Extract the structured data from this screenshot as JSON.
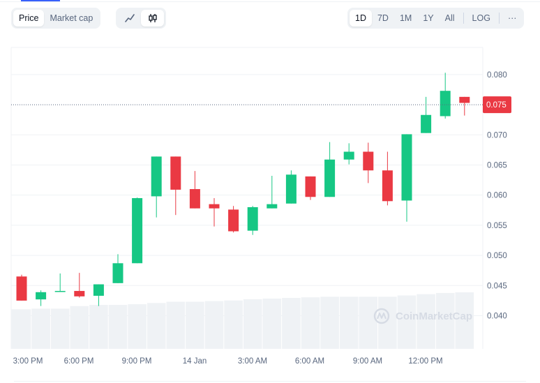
{
  "toolbar": {
    "metric_tabs": [
      {
        "label": "Price",
        "active": true
      },
      {
        "label": "Market cap",
        "active": false
      }
    ],
    "view_tabs": [
      {
        "icon": "line-chart-icon",
        "active": false
      },
      {
        "icon": "candlestick-icon",
        "active": true
      }
    ],
    "range_tabs": [
      {
        "label": "1D",
        "active": true
      },
      {
        "label": "7D",
        "active": false
      },
      {
        "label": "1M",
        "active": false
      },
      {
        "label": "1Y",
        "active": false
      },
      {
        "label": "All",
        "active": false
      }
    ],
    "log_label": "LOG",
    "more_label": "···"
  },
  "watermark": "CoinMarketCap",
  "colors": {
    "up": "#16c784",
    "down": "#ea3943",
    "grid": "#eff2f5",
    "volume": "#eff2f5",
    "text": "#58667e"
  },
  "chart_data": {
    "type": "candlestick",
    "current_price": 0.075,
    "current_price_label": "0.075",
    "ylim": [
      0.0345,
      0.0845
    ],
    "y_ticks": [
      "0.080",
      "0.075",
      "0.070",
      "0.065",
      "0.060",
      "0.055",
      "0.050",
      "0.045",
      "0.040"
    ],
    "x_ticks": [
      "3:00 PM",
      "6:00 PM",
      "9:00 PM",
      "14 Jan",
      "3:00 AM",
      "6:00 AM",
      "9:00 AM",
      "12:00 PM"
    ],
    "candles": [
      {
        "o": 0.0465,
        "h": 0.0468,
        "l": 0.0425,
        "c": 0.0425
      },
      {
        "o": 0.0427,
        "h": 0.0442,
        "l": 0.0416,
        "c": 0.0439
      },
      {
        "o": 0.044,
        "h": 0.047,
        "l": 0.044,
        "c": 0.0441
      },
      {
        "o": 0.0441,
        "h": 0.0471,
        "l": 0.043,
        "c": 0.0432
      },
      {
        "o": 0.0433,
        "h": 0.0452,
        "l": 0.0416,
        "c": 0.0452
      },
      {
        "o": 0.0454,
        "h": 0.0502,
        "l": 0.0454,
        "c": 0.0487
      },
      {
        "o": 0.0487,
        "h": 0.0596,
        "l": 0.0487,
        "c": 0.0595
      },
      {
        "o": 0.0598,
        "h": 0.0664,
        "l": 0.0563,
        "c": 0.0664
      },
      {
        "o": 0.0664,
        "h": 0.0664,
        "l": 0.0567,
        "c": 0.0609
      },
      {
        "o": 0.061,
        "h": 0.064,
        "l": 0.0578,
        "c": 0.0578
      },
      {
        "o": 0.0585,
        "h": 0.0595,
        "l": 0.0548,
        "c": 0.0578
      },
      {
        "o": 0.0576,
        "h": 0.0582,
        "l": 0.0538,
        "c": 0.054
      },
      {
        "o": 0.0541,
        "h": 0.0582,
        "l": 0.0534,
        "c": 0.058
      },
      {
        "o": 0.0578,
        "h": 0.0632,
        "l": 0.0578,
        "c": 0.0585
      },
      {
        "o": 0.0586,
        "h": 0.0641,
        "l": 0.0586,
        "c": 0.0634
      },
      {
        "o": 0.0631,
        "h": 0.0631,
        "l": 0.0592,
        "c": 0.0597
      },
      {
        "o": 0.0597,
        "h": 0.0688,
        "l": 0.0597,
        "c": 0.0659
      },
      {
        "o": 0.0659,
        "h": 0.0686,
        "l": 0.0651,
        "c": 0.0672
      },
      {
        "o": 0.0672,
        "h": 0.0687,
        "l": 0.062,
        "c": 0.0641
      },
      {
        "o": 0.0641,
        "h": 0.0672,
        "l": 0.0583,
        "c": 0.059
      },
      {
        "o": 0.0591,
        "h": 0.0701,
        "l": 0.0556,
        "c": 0.0701
      },
      {
        "o": 0.0703,
        "h": 0.0763,
        "l": 0.0703,
        "c": 0.0733
      },
      {
        "o": 0.0731,
        "h": 0.0803,
        "l": 0.0727,
        "c": 0.0773
      },
      {
        "o": 0.0763,
        "h": 0.0763,
        "l": 0.0732,
        "c": 0.0753
      }
    ],
    "volume": [
      0.63,
      0.64,
      0.64,
      0.68,
      0.7,
      0.7,
      0.71,
      0.73,
      0.75,
      0.75,
      0.76,
      0.77,
      0.79,
      0.8,
      0.81,
      0.82,
      0.83,
      0.83,
      0.83,
      0.83,
      0.85,
      0.87,
      0.89,
      0.9
    ]
  }
}
